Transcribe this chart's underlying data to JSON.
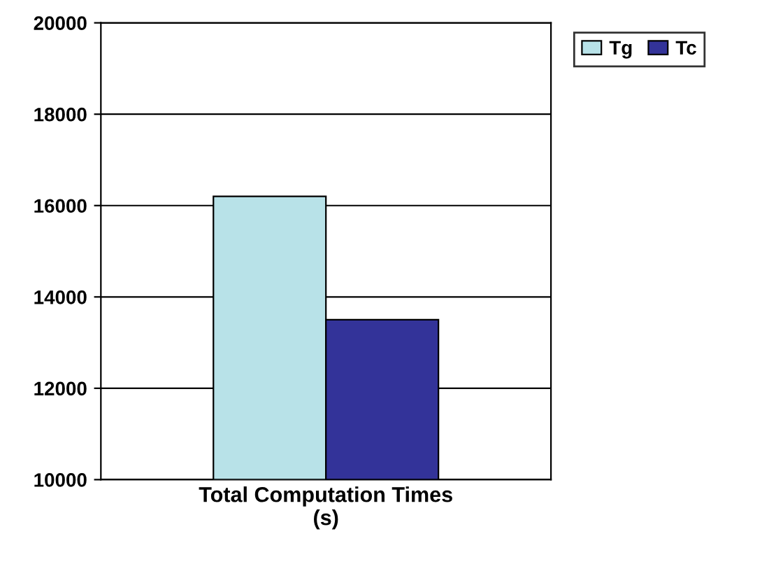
{
  "chart_data": {
    "type": "bar",
    "categories": [
      "Total Computation Times\n(s)"
    ],
    "series": [
      {
        "name": "Tg",
        "color": "#b8e2e8",
        "values": [
          16200
        ]
      },
      {
        "name": "Tc",
        "color": "#333399",
        "values": [
          13500
        ]
      }
    ],
    "ylim": [
      10000,
      20000
    ],
    "yticks": [
      10000,
      12000,
      14000,
      16000,
      18000,
      20000
    ],
    "grid": "y",
    "legend": "top right"
  }
}
